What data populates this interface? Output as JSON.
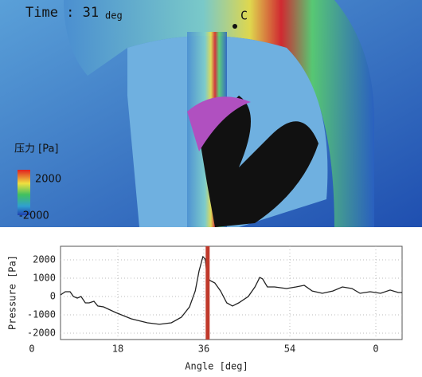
{
  "figure": {
    "time_label": "Time : 31",
    "time_unit": "deg",
    "point_label": "C",
    "colorbar": {
      "title": "压力 [Pa]",
      "max": 2000,
      "min": -2000
    }
  },
  "chart_data": {
    "type": "line",
    "x_label": "Angle [deg]",
    "y_label": "Pressure [Pa]",
    "xlim": [
      6,
      78
    ],
    "ylim": [
      -2350,
      2740
    ],
    "xticks": [
      0,
      18,
      36,
      54,
      {
        "value": 72,
        "label": "0"
      }
    ],
    "yticks": [
      2000,
      1000,
      0,
      -1000,
      -2000
    ],
    "grid": true,
    "vline": {
      "x": 36.8,
      "color": "#c0392b"
    },
    "series": [
      {
        "color": "#222222",
        "x": [
          6,
          7,
          8,
          8.7,
          9.5,
          10.3,
          11.2,
          12,
          13,
          13.8,
          15,
          17.5,
          20.8,
          24.2,
          26.7,
          29.2,
          31.3,
          33,
          34.2,
          35,
          35.8,
          36.3,
          36.7,
          37.3,
          38.3,
          39.5,
          40.8,
          42,
          43.3,
          45.3,
          46.7,
          47.7,
          48.3,
          49.3,
          50.8,
          53.3,
          55.3,
          57,
          58.7,
          60.8,
          63,
          65,
          67,
          68.7,
          70.8,
          73,
          75,
          76.7,
          77.5
        ],
        "values": [
          87,
          260,
          260,
          0,
          -87,
          0,
          -350,
          -350,
          -260,
          -520,
          -565,
          -870,
          -1220,
          -1435,
          -1520,
          -1435,
          -1130,
          -565,
          300,
          1390,
          2170,
          2040,
          1040,
          870,
          740,
          300,
          -350,
          -520,
          -350,
          0,
          520,
          1040,
          960,
          520,
          520,
          435,
          520,
          610,
          300,
          175,
          300,
          520,
          435,
          175,
          260,
          175,
          350,
          215,
          215
        ]
      }
    ]
  }
}
